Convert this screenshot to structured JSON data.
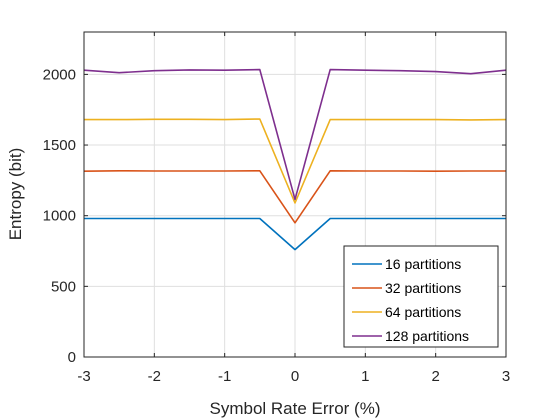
{
  "chart_data": {
    "type": "line",
    "title": "",
    "xlabel": "Symbol Rate Error (%)",
    "ylabel": "Entropy (bit)",
    "xlim": [
      -3,
      3
    ],
    "ylim": [
      0,
      2300
    ],
    "xticks": [
      -3,
      -2,
      -1,
      0,
      1,
      2,
      3
    ],
    "yticks": [
      0,
      500,
      1000,
      1500,
      2000
    ],
    "grid": true,
    "legend_position": "bottom-right",
    "x": [
      -3,
      -2.5,
      -2,
      -1.5,
      -1,
      -0.5,
      0,
      0.5,
      1,
      1.5,
      2,
      2.5,
      3
    ],
    "series": [
      {
        "name": "16 partitions",
        "color": "#0072BD",
        "values": [
          980,
          980,
          980,
          980,
          980,
          980,
          760,
          980,
          980,
          980,
          980,
          980,
          980
        ]
      },
      {
        "name": "32 partitions",
        "color": "#D95319",
        "values": [
          1315,
          1318,
          1316,
          1316,
          1316,
          1318,
          950,
          1318,
          1316,
          1316,
          1315,
          1316,
          1316
        ]
      },
      {
        "name": "64 partitions",
        "color": "#EDB120",
        "values": [
          1680,
          1680,
          1682,
          1682,
          1680,
          1684,
          1090,
          1680,
          1680,
          1680,
          1680,
          1678,
          1680
        ]
      },
      {
        "name": "128 partitions",
        "color": "#7E2F8E",
        "values": [
          2030,
          2012,
          2026,
          2032,
          2030,
          2034,
          1115,
          2034,
          2030,
          2026,
          2020,
          2005,
          2030
        ]
      }
    ]
  }
}
